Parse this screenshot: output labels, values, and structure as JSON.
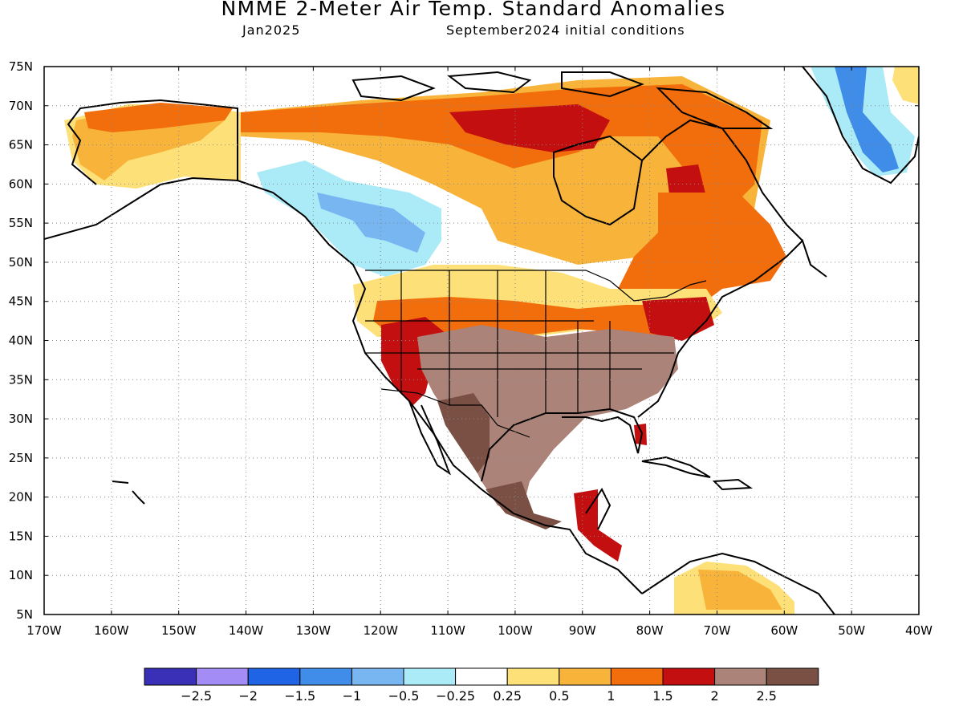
{
  "title": "NMME 2-Meter Air Temp. Standard Anomalies",
  "subtitle_left": "Jan2025",
  "subtitle_right": "September2024 initial conditions",
  "lat_labels": [
    "75N",
    "70N",
    "65N",
    "60N",
    "55N",
    "50N",
    "45N",
    "40N",
    "35N",
    "30N",
    "25N",
    "20N",
    "15N",
    "10N",
    "5N"
  ],
  "lon_labels": [
    "170W",
    "160W",
    "150W",
    "140W",
    "130W",
    "120W",
    "110W",
    "100W",
    "90W",
    "80W",
    "70W",
    "60W",
    "50W",
    "40W"
  ],
  "colorbar": {
    "colors": [
      "#3a2fb7",
      "#a38cf5",
      "#1f64e4",
      "#3f8de8",
      "#78b6f2",
      "#abeaf7",
      "#ffffff",
      "#fde077",
      "#f8b43a",
      "#f26d0c",
      "#c30f0f",
      "#ab8378",
      "#7b5044"
    ],
    "labels": [
      "−2.5",
      "−2",
      "−1.5",
      "−1",
      "−0.5",
      "−0.25",
      "0.25",
      "0.5",
      "1",
      "1.5",
      "2",
      "2.5"
    ]
  },
  "anomaly_colors": {
    "brown_dark": "#7b5044",
    "brown": "#ab8378",
    "red": "#c30f0f",
    "orange_dark": "#f26d0c",
    "orange": "#f8b43a",
    "yellow": "#fde077",
    "cyan": "#abeaf7",
    "blue_light": "#78b6f2",
    "blue": "#3f8de8"
  }
}
